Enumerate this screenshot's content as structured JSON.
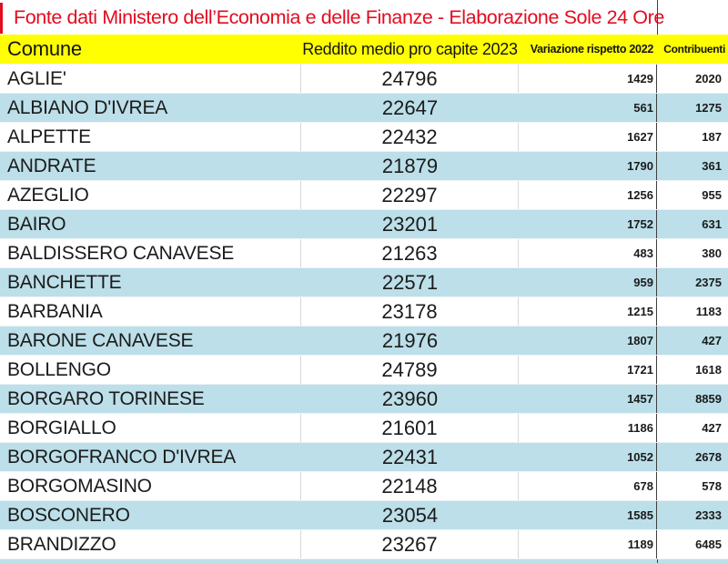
{
  "title": "Fonte dati Ministero dell’Economia e delle Finanze - Elaborazione Sole 24 Ore",
  "colors": {
    "title_red": "#e30b20",
    "header_yellow": "#ffff00",
    "row_blue": "#bcdfe9",
    "divider_dark": "#3f3f3f",
    "divider_light": "#d9d9d9"
  },
  "chart_data": {
    "type": "table",
    "title": "Fonte dati Ministero dell’Economia e delle Finanze - Elaborazione Sole 24 Ore",
    "columns": [
      "Comune",
      "Reddito medio pro capite 2023",
      "Variazione rispetto 2022",
      "Contribuenti"
    ],
    "rows": [
      [
        "AGLIE'",
        24796,
        1429,
        2020
      ],
      [
        "ALBIANO D'IVREA",
        22647,
        561,
        1275
      ],
      [
        "ALPETTE",
        22432,
        1627,
        187
      ],
      [
        "ANDRATE",
        21879,
        1790,
        361
      ],
      [
        "AZEGLIO",
        22297,
        1256,
        955
      ],
      [
        "BAIRO",
        23201,
        1752,
        631
      ],
      [
        "BALDISSERO CANAVESE",
        21263,
        483,
        380
      ],
      [
        "BANCHETTE",
        22571,
        959,
        2375
      ],
      [
        "BARBANIA",
        23178,
        1215,
        1183
      ],
      [
        "BARONE CANAVESE",
        21976,
        1807,
        427
      ],
      [
        "BOLLENGO",
        24789,
        1721,
        1618
      ],
      [
        "BORGARO TORINESE",
        23960,
        1457,
        8859
      ],
      [
        "BORGIALLO",
        21601,
        1186,
        427
      ],
      [
        "BORGOFRANCO D'IVREA",
        22431,
        1052,
        2678
      ],
      [
        "BORGOMASINO",
        22148,
        678,
        578
      ],
      [
        "BOSCONERO",
        23054,
        1585,
        2333
      ],
      [
        "BRANDIZZO",
        23267,
        1189,
        6485
      ]
    ]
  }
}
